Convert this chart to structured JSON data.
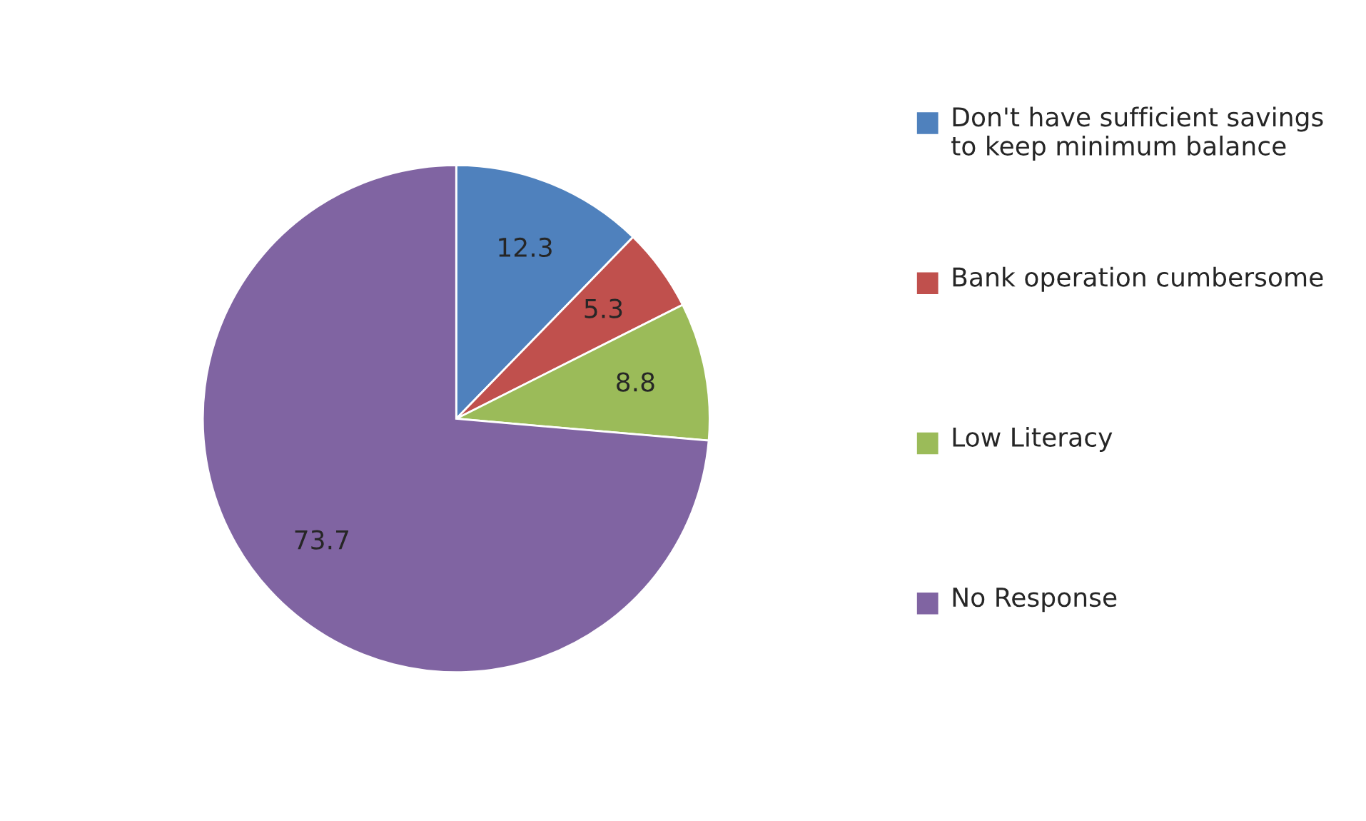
{
  "chart_data": {
    "type": "pie",
    "categories": [
      "Don't have sufficient savings to keep minimum balance",
      "Bank operation cumbersome",
      "Low Literacy",
      "No Response"
    ],
    "values": [
      12.3,
      5.3,
      8.8,
      73.7
    ],
    "colors": [
      "#4f81bd",
      "#c0504d",
      "#9bbb59",
      "#8064a2"
    ],
    "data_labels": true,
    "legend": "right"
  }
}
